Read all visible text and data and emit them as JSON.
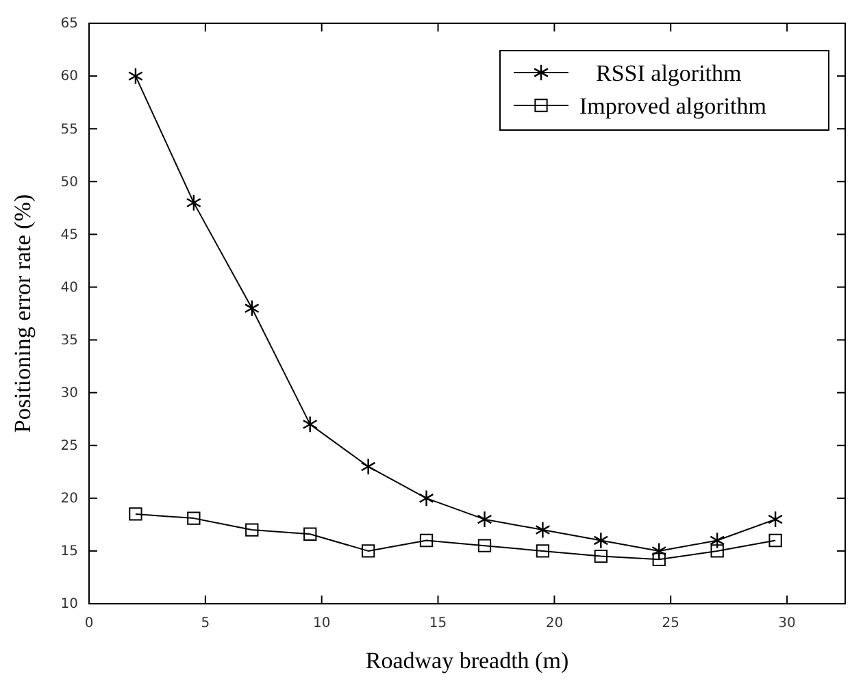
{
  "chart_data": {
    "type": "line",
    "xlabel": "Roadway breadth (m)",
    "ylabel": "Positioning error rate (%)",
    "xlim": [
      0,
      32.5
    ],
    "xticks": [
      0,
      5,
      10,
      15,
      20,
      25,
      30
    ],
    "ylim": [
      10,
      65
    ],
    "yticks": [
      10,
      15,
      20,
      25,
      30,
      35,
      40,
      45,
      50,
      55,
      60,
      65
    ],
    "grid": false,
    "legend": "top right",
    "line_style": "solid",
    "x": [
      2,
      4.5,
      7,
      9.5,
      12,
      14.5,
      17,
      19.5,
      22,
      24.5,
      27,
      29.5
    ],
    "series": [
      {
        "name": "RSSI algorithm",
        "color": "#000000",
        "marker": "cross",
        "values": [
          60,
          48,
          38,
          27,
          23,
          20,
          18,
          17,
          16,
          15,
          16,
          18
        ]
      },
      {
        "name": "Improved algorithm",
        "color": "#000000",
        "marker": "square",
        "values": [
          18.5,
          18.1,
          17,
          16.6,
          15,
          16,
          15.5,
          15,
          14.5,
          14.2,
          15,
          16
        ]
      }
    ]
  }
}
